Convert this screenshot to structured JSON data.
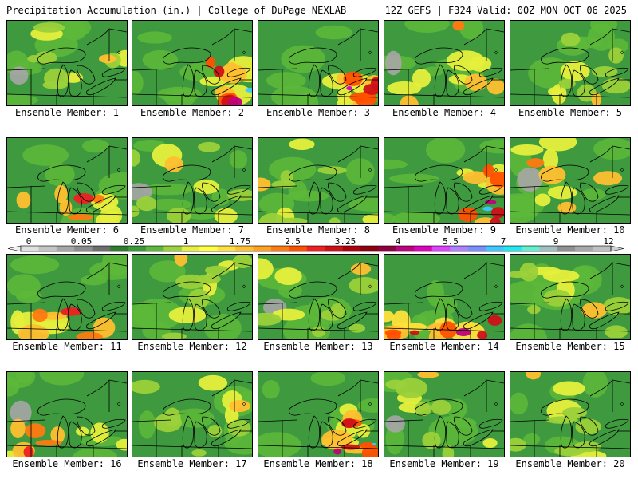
{
  "header": {
    "left": "Precipitation Accumulation (in.) | College of DuPage NEXLAB",
    "right": "12Z GEFS | F324 Valid: 00Z MON OCT 06 2025"
  },
  "panels": [
    {
      "label": "Ensemble Member: 1",
      "heavy": "light"
    },
    {
      "label": "Ensemble Member: 2",
      "heavy": "east-heavy"
    },
    {
      "label": "Ensemble Member: 3",
      "heavy": "southeast-heavy"
    },
    {
      "label": "Ensemble Member: 4",
      "heavy": "moderate"
    },
    {
      "label": "Ensemble Member: 5",
      "heavy": "light"
    },
    {
      "label": "Ensemble Member: 6",
      "heavy": "south"
    },
    {
      "label": "Ensemble Member: 7",
      "heavy": "light"
    },
    {
      "label": "Ensemble Member: 8",
      "heavy": "light"
    },
    {
      "label": "Ensemble Member: 9",
      "heavy": "east-heavy"
    },
    {
      "label": "Ensemble Member: 10",
      "heavy": "moderate"
    },
    {
      "label": "Ensemble Member: 11",
      "heavy": "south"
    },
    {
      "label": "Ensemble Member: 12",
      "heavy": "light"
    },
    {
      "label": "Ensemble Member: 13",
      "heavy": "light"
    },
    {
      "label": "Ensemble Member: 14",
      "heavy": "south-heavy"
    },
    {
      "label": "Ensemble Member: 15",
      "heavy": "light"
    },
    {
      "label": "Ensemble Member: 16",
      "heavy": "south"
    },
    {
      "label": "Ensemble Member: 17",
      "heavy": "light"
    },
    {
      "label": "Ensemble Member: 18",
      "heavy": "east-heavy"
    },
    {
      "label": "Ensemble Member: 19",
      "heavy": "light"
    },
    {
      "label": "Ensemble Member: 20",
      "heavy": "light"
    }
  ],
  "colorbar": {
    "ticks": [
      "0",
      "0.05",
      "0.25",
      "1",
      "1.75",
      "2.5",
      "3.25",
      "4",
      "5.5",
      "7",
      "9",
      "12"
    ],
    "colors": [
      "#e0e0e0",
      "#c4c4c4",
      "#a6a6a6",
      "#8c8c8c",
      "#6e6e6e",
      "#2e7d2e",
      "#3a9a3a",
      "#5cb83a",
      "#9bd13a",
      "#e6f03c",
      "#ffff3c",
      "#ffe03c",
      "#ffc030",
      "#ffa020",
      "#ff7a10",
      "#ff5000",
      "#f02020",
      "#d01018",
      "#b00010",
      "#8c0010",
      "#900040",
      "#c00080",
      "#e000c0",
      "#e040ff",
      "#b080ff",
      "#7890ff",
      "#3cc8ff",
      "#20e8f0",
      "#60f0d0",
      "#a0c0c0",
      "#909090",
      "#a8a8a8",
      "#c0c0c0"
    ]
  }
}
